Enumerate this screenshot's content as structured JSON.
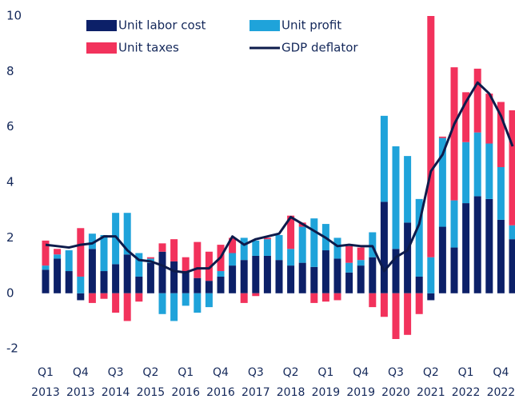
{
  "chart_data": {
    "type": "bar",
    "categories": [
      "Q1 2013",
      null,
      null,
      "Q4 2013",
      null,
      null,
      "Q3 2014",
      null,
      null,
      "Q2 2015",
      null,
      null,
      "Q1 2016",
      null,
      null,
      "Q4 2016",
      null,
      null,
      "Q3 2017",
      null,
      null,
      "Q2 2018",
      null,
      null,
      "Q1 2019",
      null,
      null,
      "Q4 2019",
      null,
      null,
      "Q3 2020",
      null,
      null,
      "Q2 2021",
      null,
      null,
      "Q1 2022",
      null,
      null,
      "Q4 2022",
      null
    ],
    "series": [
      {
        "name": "Unit labor cost",
        "color": "#0c2068",
        "values": [
          0.85,
          1.25,
          0.8,
          -0.25,
          1.6,
          0.8,
          1.05,
          1.4,
          0.6,
          1.1,
          1.5,
          1.15,
          0.8,
          0.55,
          0.45,
          0.6,
          1.0,
          1.2,
          1.35,
          1.35,
          1.2,
          1.0,
          1.1,
          0.95,
          1.55,
          1.25,
          0.75,
          1.0,
          1.3,
          3.3,
          1.6,
          2.55,
          0.6,
          -0.25,
          2.4,
          1.65,
          3.25,
          3.5,
          3.4,
          2.65,
          1.95
        ]
      },
      {
        "name": "Unit profit",
        "color": "#1fa3da",
        "values": [
          0.15,
          0.15,
          0.75,
          0.6,
          0.55,
          1.3,
          1.85,
          1.5,
          0.85,
          0.15,
          -0.75,
          -1.0,
          -0.45,
          -0.7,
          -0.5,
          0.2,
          0.45,
          0.8,
          0.55,
          0.6,
          0.9,
          0.6,
          1.3,
          1.75,
          0.95,
          0.75,
          0.35,
          0.2,
          0.9,
          3.1,
          3.7,
          2.4,
          2.8,
          1.3,
          3.2,
          1.7,
          2.2,
          2.3,
          2.0,
          1.9,
          0.5
        ]
      },
      {
        "name": "Unit taxes",
        "color": "#f2325c",
        "values": [
          0.9,
          0.2,
          0,
          1.75,
          -0.35,
          -0.2,
          -0.7,
          -1.0,
          -0.3,
          0.05,
          0.3,
          0.8,
          0.5,
          1.3,
          1.05,
          0.95,
          0.55,
          -0.35,
          -0.1,
          0.05,
          0,
          1.2,
          0.15,
          -0.35,
          -0.3,
          -0.25,
          0.6,
          0.45,
          -0.5,
          -0.85,
          -1.65,
          -1.5,
          -0.75,
          8.7,
          0.05,
          4.8,
          1.8,
          2.3,
          1.8,
          2.35,
          4.15
        ]
      },
      {
        "name": "GDP deflator",
        "type": "line",
        "color": "#0d1b4b",
        "values": [
          1.75,
          1.7,
          1.65,
          1.75,
          1.8,
          2.05,
          2.05,
          1.55,
          1.2,
          1.15,
          1.0,
          0.8,
          0.75,
          0.9,
          0.9,
          1.3,
          2.05,
          1.75,
          1.95,
          2.05,
          2.15,
          2.75,
          2.5,
          2.25,
          2.0,
          1.7,
          1.75,
          1.7,
          1.7,
          0.8,
          1.3,
          1.55,
          2.5,
          4.4,
          5.0,
          6.1,
          6.9,
          7.6,
          7.2,
          6.4,
          5.3
        ]
      }
    ],
    "ylim": [
      -2.4,
      10.0
    ],
    "yticks": [
      -2,
      0,
      2,
      4,
      6,
      8,
      10
    ],
    "grid": false,
    "legend": "top"
  }
}
